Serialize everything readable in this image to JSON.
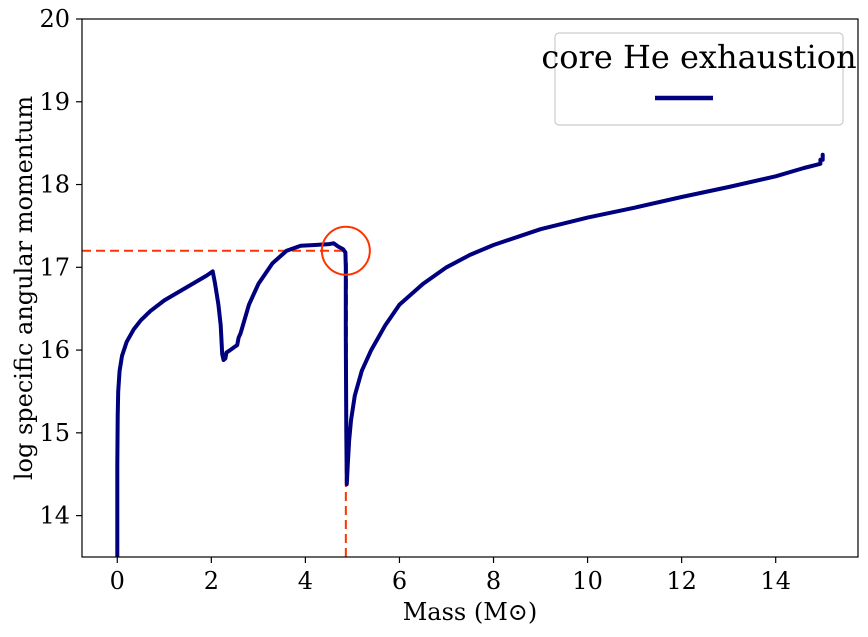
{
  "chart_data": {
    "type": "line",
    "xlabel": "Mass (M⊙)",
    "ylabel": "log specific angular momentum",
    "xlim": [
      -0.75,
      15.75
    ],
    "ylim": [
      13.5,
      20
    ],
    "xticks": [
      0,
      2,
      4,
      6,
      8,
      10,
      12,
      14
    ],
    "yticks": [
      14,
      15,
      16,
      17,
      18,
      19,
      20
    ],
    "grid": false,
    "legend": {
      "placement": "top-right",
      "title": "core He exhaustion"
    },
    "colors": {
      "series": "#00007f",
      "marker": "#ff3300"
    },
    "series": [
      {
        "name": "",
        "style": "solid",
        "x": [
          0.0,
          0.0,
          0.01,
          0.02,
          0.05,
          0.1,
          0.2,
          0.35,
          0.5,
          0.7,
          1.0,
          1.3,
          1.6,
          1.9,
          2.03,
          2.08,
          2.15,
          2.2,
          2.23,
          2.26,
          2.3,
          2.32,
          2.35,
          2.4,
          2.5,
          2.55,
          2.58,
          2.62,
          2.8,
          3.0,
          3.3,
          3.6,
          3.9,
          4.2,
          4.5,
          4.6,
          4.7,
          4.8,
          4.85,
          4.86,
          4.86,
          4.87,
          4.88,
          4.9,
          4.93,
          4.97,
          5.05,
          5.2,
          5.4,
          5.7,
          6.0,
          6.5,
          7.0,
          7.5,
          8.0,
          9.0,
          10.0,
          11.0,
          12.0,
          13.0,
          14.0,
          14.6,
          14.95,
          14.95,
          15.0,
          15.0
        ],
        "y": [
          13.5,
          14.6,
          15.2,
          15.5,
          15.75,
          15.93,
          16.1,
          16.25,
          16.36,
          16.47,
          16.6,
          16.7,
          16.8,
          16.9,
          16.95,
          16.8,
          16.55,
          16.3,
          15.95,
          15.88,
          15.9,
          15.97,
          15.98,
          16.0,
          16.04,
          16.06,
          16.15,
          16.2,
          16.55,
          16.8,
          17.05,
          17.2,
          17.26,
          17.27,
          17.28,
          17.29,
          17.25,
          17.22,
          17.18,
          17.0,
          16.2,
          15.0,
          14.38,
          14.6,
          14.9,
          15.15,
          15.45,
          15.75,
          16.0,
          16.3,
          16.55,
          16.8,
          17.0,
          17.15,
          17.27,
          17.46,
          17.6,
          17.72,
          17.85,
          17.97,
          18.1,
          18.2,
          18.25,
          18.3,
          18.3,
          18.36
        ]
      },
      {
        "name": "",
        "style": "dashed",
        "x": [
          4.87,
          4.87
        ],
        "y": [
          15.0,
          17.12
        ]
      }
    ],
    "annotations": [
      {
        "type": "dashed-hline",
        "y": 17.2,
        "x_from": -0.75,
        "x_to": 4.86
      },
      {
        "type": "dashed-vline",
        "x": 4.86,
        "y_from": 13.5,
        "y_to": 17.2
      },
      {
        "type": "circle",
        "x": 4.86,
        "y": 17.2
      }
    ]
  }
}
